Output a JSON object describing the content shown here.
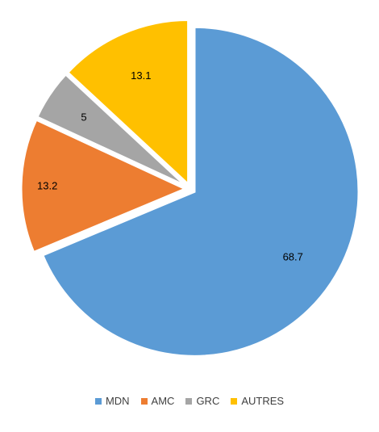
{
  "chart_data": {
    "type": "pie",
    "categories": [
      "MDN",
      "AMC",
      "GRC",
      "AUTRES"
    ],
    "values": [
      68.7,
      13.2,
      5,
      13.1
    ],
    "labels": [
      "68.7",
      "13.2",
      "5",
      "13.1"
    ],
    "colors": [
      "#5B9BD5",
      "#ED7D31",
      "#A5A5A5",
      "#FFC000"
    ],
    "title": "",
    "legend_position": "bottom",
    "exploded": true
  }
}
